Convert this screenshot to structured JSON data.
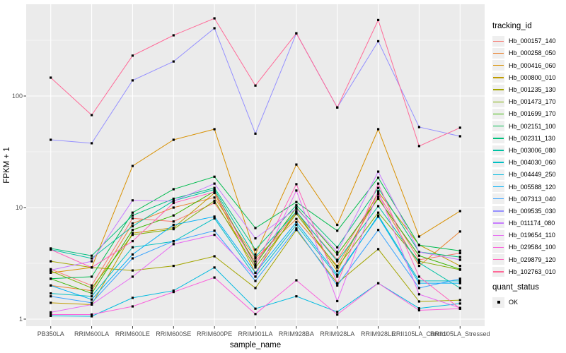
{
  "chart_data": {
    "type": "line",
    "title": "",
    "xlabel": "sample_name",
    "ylabel": "FPKM + 1",
    "y_scale": "log10",
    "y_ticks": [
      1,
      10,
      100
    ],
    "y_minor_ticks": [
      3.162,
      31.62,
      316.2
    ],
    "ylim": [
      0.86,
      660
    ],
    "grid": true,
    "legend_position": "right",
    "legend": {
      "color_title": "tracking_id",
      "shape_title": "quant_status",
      "shape_label": "OK"
    },
    "colors": {
      "panel_bg": "#ebebeb",
      "grid_major": "#ffffff",
      "grid_minor": "#ffffff",
      "tick_mark": "#333333",
      "tick_text": "#4d4d4d",
      "axis_title_text": "#000000",
      "point": "#000000",
      "legend_key_bg": "#efefef"
    },
    "categories": [
      "PB350LA",
      "RRIM600LA",
      "RRIM600LE",
      "RRIM600SE",
      "RRIM600PE",
      "RRIM901LA",
      "RRIM928BA",
      "RRIM928LA",
      "RRIM928LE",
      "RRII105LA_Control",
      "RRII105LA_Stressed"
    ],
    "series": [
      {
        "name": "Hb_000157_140",
        "color": "#F8766D",
        "values": [
          2.8,
          2.0,
          8.0,
          7.5,
          11.0,
          3.3,
          9.0,
          3.4,
          13.2,
          3.4,
          3.9
        ]
      },
      {
        "name": "Hb_000258_050",
        "color": "#EA8331",
        "values": [
          2.0,
          1.8,
          7.2,
          10.0,
          12.3,
          3.5,
          7.9,
          3.0,
          12.5,
          3.0,
          6.1
        ]
      },
      {
        "name": "Hb_000416_060",
        "color": "#D89000",
        "values": [
          2.6,
          2.9,
          23.6,
          40.5,
          50.4,
          3.8,
          24.3,
          7.0,
          50.4,
          5.5,
          9.3
        ]
      },
      {
        "name": "Hb_000800_010",
        "color": "#C09B00",
        "values": [
          1.4,
          1.35,
          5.9,
          6.6,
          13.5,
          2.6,
          9.3,
          2.7,
          13.8,
          4.63,
          3.0
        ]
      },
      {
        "name": "Hb_001235_130",
        "color": "#A3A500",
        "values": [
          3.3,
          2.9,
          2.73,
          3.0,
          3.66,
          1.9,
          6.3,
          2.1,
          4.24,
          1.44,
          1.48
        ]
      },
      {
        "name": "Hb_001473_170",
        "color": "#7CAE00",
        "values": [
          2.7,
          1.9,
          5.7,
          6.4,
          11.5,
          2.9,
          8.8,
          2.9,
          9.0,
          3.3,
          2.77
        ]
      },
      {
        "name": "Hb_001699_170",
        "color": "#39B600",
        "values": [
          2.3,
          1.7,
          6.3,
          8.5,
          14.0,
          3.1,
          10.0,
          3.8,
          12.0,
          3.7,
          2.8
        ]
      },
      {
        "name": "Hb_002151_100",
        "color": "#00BB4E",
        "values": [
          2.3,
          2.4,
          9.0,
          14.6,
          18.9,
          6.55,
          11.2,
          6.2,
          18.5,
          4.6,
          4.1
        ]
      },
      {
        "name": "Hb_002311_130",
        "color": "#00BF7D",
        "values": [
          4.3,
          3.7,
          8.5,
          12.0,
          15.0,
          4.2,
          10.5,
          4.4,
          15.0,
          4.0,
          3.6
        ]
      },
      {
        "name": "Hb_003006_080",
        "color": "#00C1A3",
        "values": [
          4.2,
          3.5,
          6.8,
          11.5,
          14.5,
          3.6,
          9.2,
          3.3,
          10.3,
          3.2,
          1.9
        ]
      },
      {
        "name": "Hb_004030_060",
        "color": "#00BFC4",
        "values": [
          1.7,
          1.6,
          4.4,
          4.97,
          8.0,
          2.4,
          7.0,
          2.4,
          8.5,
          2.2,
          2.2
        ]
      },
      {
        "name": "Hb_004449_250",
        "color": "#00BAE0",
        "values": [
          1.07,
          1.06,
          1.55,
          1.8,
          2.9,
          1.24,
          1.6,
          1.16,
          2.1,
          1.25,
          1.38
        ]
      },
      {
        "name": "Hb_005588_120",
        "color": "#00B0F6",
        "values": [
          2.0,
          1.5,
          3.8,
          7.0,
          8.3,
          2.6,
          7.4,
          2.5,
          8.3,
          2.1,
          2.1
        ]
      },
      {
        "name": "Hb_007313_040",
        "color": "#35A2FF",
        "values": [
          1.6,
          1.4,
          3.5,
          5.0,
          6.2,
          2.2,
          6.5,
          2.0,
          6.3,
          1.9,
          2.3
        ]
      },
      {
        "name": "Hb_009535_030",
        "color": "#9590FF",
        "values": [
          40.5,
          37.7,
          138,
          204,
          405,
          46,
          365,
          79,
          310,
          52.7,
          43.6
        ]
      },
      {
        "name": "Hb_011174_080",
        "color": "#C77CFF",
        "values": [
          2.75,
          3.3,
          11.6,
          11.4,
          16.4,
          5.3,
          9.8,
          4.0,
          21.0,
          4.0,
          3.4
        ]
      },
      {
        "name": "Hb_019654_110",
        "color": "#E76BF3",
        "values": [
          1.15,
          1.35,
          2.4,
          4.7,
          5.7,
          2.4,
          14.2,
          1.45,
          14.0,
          1.67,
          1.26
        ]
      },
      {
        "name": "Hb_029584_100",
        "color": "#FA62DB",
        "values": [
          1.1,
          1.1,
          1.3,
          1.75,
          2.36,
          1.11,
          2.23,
          1.1,
          2.1,
          1.2,
          1.24
        ]
      },
      {
        "name": "Hb_029879_120",
        "color": "#FF62BC",
        "values": [
          4.2,
          2.9,
          5.0,
          11.0,
          13.8,
          3.0,
          16.2,
          2.1,
          16.4,
          2.4,
          1.24
        ]
      },
      {
        "name": "Hb_102763_010",
        "color": "#FF6A98",
        "values": [
          146,
          67.5,
          230,
          350,
          497,
          124,
          365,
          79,
          480,
          35.6,
          52
        ]
      }
    ]
  }
}
